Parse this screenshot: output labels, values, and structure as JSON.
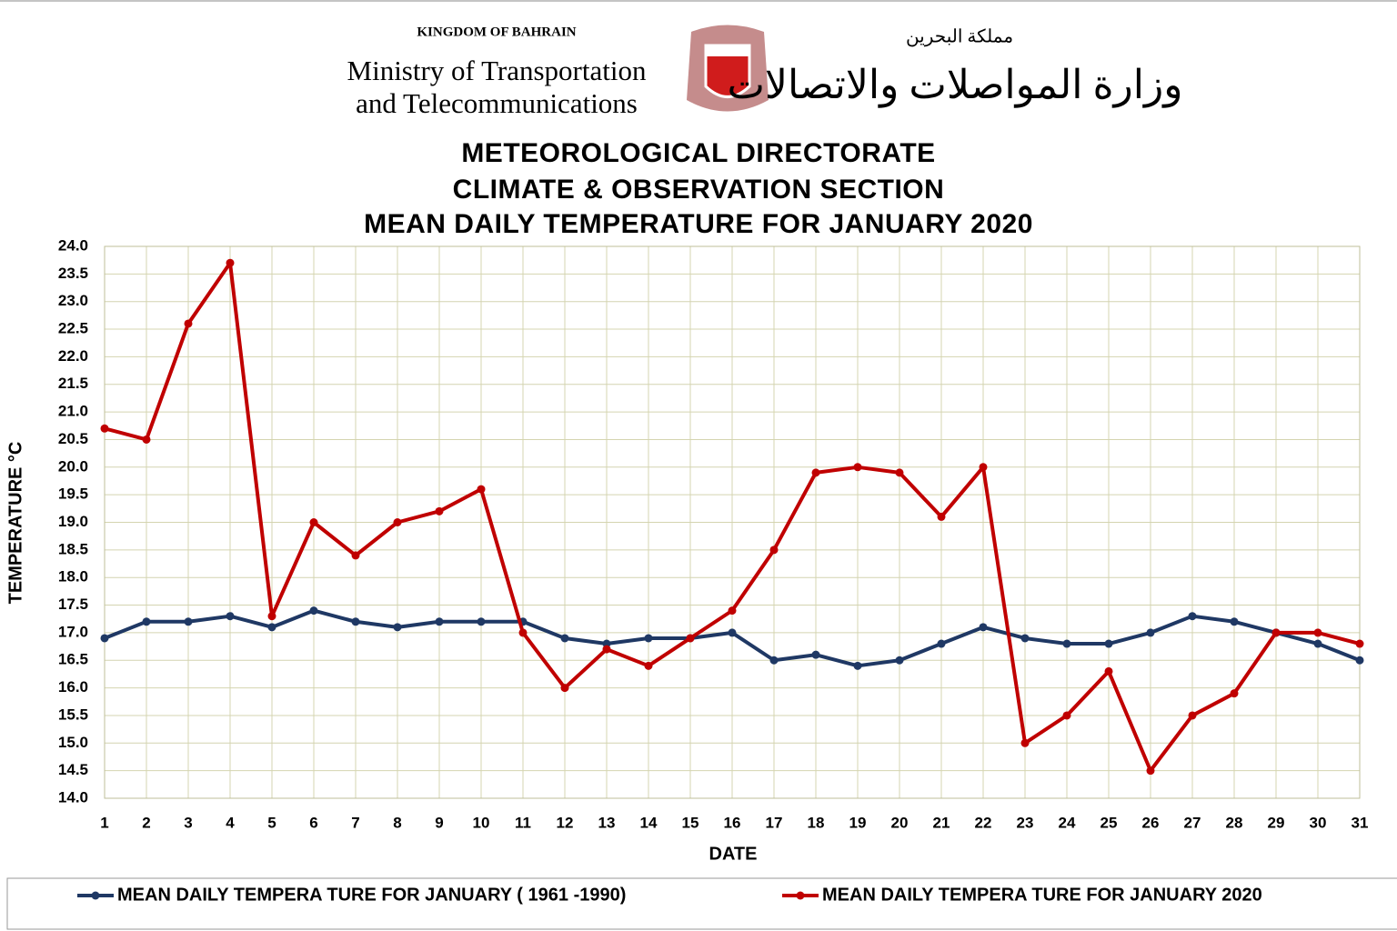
{
  "header": {
    "kingdom": "KINGDOM OF BAHRAIN",
    "ministry_line1": "Ministry of Transportation",
    "ministry_line2": "and Telecommunications",
    "kingdom_ar": "مملكة البحرين",
    "ministry_ar": "وزارة المواصلات والاتصالات"
  },
  "chart_data": {
    "type": "line",
    "title": [
      "METEOROLOGICAL  DIRECTORATE",
      "CLIMATE  &  OBSERVATION  SECTION",
      "MEAN  DAILY  TEMPERATURE  FOR  JANUARY  2020"
    ],
    "x_label": "DATE",
    "y_label": "TEMPERATURE °C",
    "x": [
      1,
      2,
      3,
      4,
      5,
      6,
      7,
      8,
      9,
      10,
      11,
      12,
      13,
      14,
      15,
      16,
      17,
      18,
      19,
      20,
      21,
      22,
      23,
      24,
      25,
      26,
      27,
      28,
      29,
      30,
      31
    ],
    "xlim": [
      1,
      31
    ],
    "ylim": [
      14,
      24
    ],
    "yticks": [
      {
        "value": 14,
        "label": "14.0"
      },
      14.5,
      {
        "value": 15,
        "label": "15.0"
      },
      15.5,
      {
        "value": 16,
        "label": "16.0"
      },
      16.5,
      {
        "value": 17,
        "label": "17.0"
      },
      17.5,
      {
        "value": 18,
        "label": "18.0"
      },
      18.5,
      {
        "value": 19,
        "label": "19.0"
      },
      19.5,
      {
        "value": 20,
        "label": "20.0"
      },
      20.5,
      {
        "value": 21,
        "label": "21.0"
      },
      21.5,
      {
        "value": 22,
        "label": "22.0"
      },
      22.5,
      {
        "value": 23,
        "label": "23.0"
      },
      23.5,
      {
        "value": 24,
        "label": "24.0"
      }
    ],
    "grid": true,
    "legend": "bottom",
    "series": [
      {
        "name": "MEAN DAILY TEMPERA TURE FOR JANUARY ( 1961 -1990)",
        "color": "#1f3864",
        "values": [
          16.9,
          17.2,
          17.2,
          17.3,
          17.1,
          17.4,
          17.2,
          17.1,
          17.2,
          17.2,
          17.2,
          16.9,
          16.8,
          16.9,
          16.9,
          17.0,
          16.5,
          16.6,
          16.4,
          16.5,
          16.8,
          17.1,
          16.9,
          16.8,
          16.8,
          17.0,
          17.3,
          17.2,
          17.0,
          16.8,
          16.5
        ]
      },
      {
        "name": "MEAN DAILY TEMPERA TURE FOR JANUARY 2020",
        "color": "#c00000",
        "values": [
          20.7,
          20.5,
          22.6,
          23.7,
          17.3,
          19.0,
          18.4,
          19.0,
          19.2,
          19.6,
          17.0,
          16.0,
          16.7,
          16.4,
          16.9,
          17.4,
          18.5,
          19.9,
          20.0,
          19.9,
          19.1,
          20.0,
          15.0,
          15.5,
          16.3,
          14.5,
          15.5,
          15.9,
          17.0,
          17.0,
          16.8
        ]
      }
    ]
  }
}
